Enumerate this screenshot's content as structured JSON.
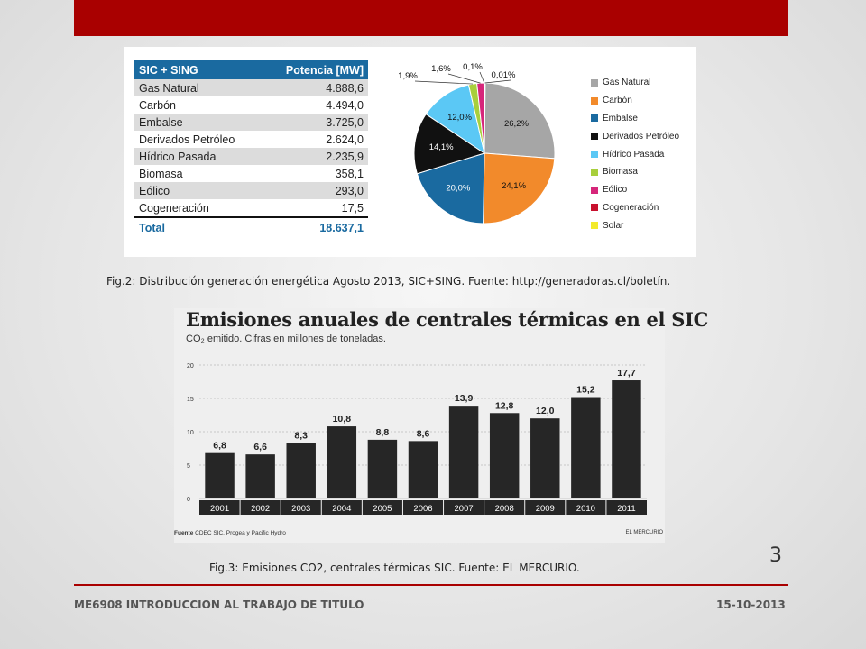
{
  "colors": {
    "accent": "#a90000",
    "table_header": "#1a6aa0"
  },
  "table": {
    "header": {
      "col1": "SIC + SING",
      "col2": "Potencia [MW]"
    },
    "rows": [
      {
        "name": "Gas Natural",
        "value": "4.888,6"
      },
      {
        "name": "Carbón",
        "value": "4.494,0"
      },
      {
        "name": "Embalse",
        "value": "3.725,0"
      },
      {
        "name": "Derivados Petróleo",
        "value": "2.624,0"
      },
      {
        "name": "Hídrico Pasada",
        "value": "2.235,9"
      },
      {
        "name": "Biomasa",
        "value": "358,1"
      },
      {
        "name": "Eólico",
        "value": "293,0"
      },
      {
        "name": "Cogeneración",
        "value": "17,5"
      }
    ],
    "total": {
      "name": "Total",
      "value": "18.637,1"
    }
  },
  "chart_data": [
    {
      "type": "pie",
      "labels": [
        "Gas Natural",
        "Carbón",
        "Embalse",
        "Derivados Petróleo",
        "Hídrico Pasada",
        "Biomasa",
        "Eólico",
        "Cogeneración",
        "Solar"
      ],
      "values": [
        26.2,
        24.1,
        20.0,
        14.1,
        12.0,
        1.9,
        1.6,
        0.1,
        0.01
      ],
      "value_labels": [
        "26,2%",
        "24,1%",
        "20,0%",
        "14,1%",
        "12,0%",
        "1,9%",
        "1,6%",
        "0,1%",
        "0,01%"
      ],
      "colors": [
        "#a6a6a6",
        "#f28a2b",
        "#1a6aa0",
        "#111111",
        "#5bc8f5",
        "#a8cf3c",
        "#d6267a",
        "#c8102e",
        "#f3ea2c"
      ],
      "legend_position": "right"
    },
    {
      "type": "bar",
      "title": "Emisiones anuales de centrales térmicas en el SIC",
      "subtitle": "CO₂ emitido. Cifras en millones de toneladas.",
      "categories": [
        "2001",
        "2002",
        "2003",
        "2004",
        "2005",
        "2006",
        "2007",
        "2008",
        "2009",
        "2010",
        "2011"
      ],
      "values": [
        6.8,
        6.6,
        8.3,
        10.8,
        8.8,
        8.6,
        13.9,
        12.8,
        12.0,
        15.2,
        17.7
      ],
      "value_labels": [
        "6,8",
        "6,6",
        "8,3",
        "10,8",
        "8,8",
        "8,6",
        "13,9",
        "12,8",
        "12,0",
        "15,2",
        "17,7"
      ],
      "yticks": [
        "0",
        "5",
        "10",
        "15",
        "20"
      ],
      "ylim": [
        0,
        20
      ],
      "grid": true,
      "source_label": "Fuente",
      "source": "CDEC SIC, Progea y Pacific Hydro",
      "publisher": "EL MERCURIO"
    }
  ],
  "captions": {
    "fig2": "Fig.2: Distribución generación energética Agosto 2013, SIC+SING. Fuente: http://generadoras.cl/boletín.",
    "fig3": "Fig.3: Emisiones CO2, centrales térmicas SIC. Fuente: EL MERCURIO."
  },
  "page_number": "3",
  "footer": {
    "course": "ME6908 INTRODUCCION AL TRABAJO DE TITULO",
    "date": "15-10-2013"
  }
}
